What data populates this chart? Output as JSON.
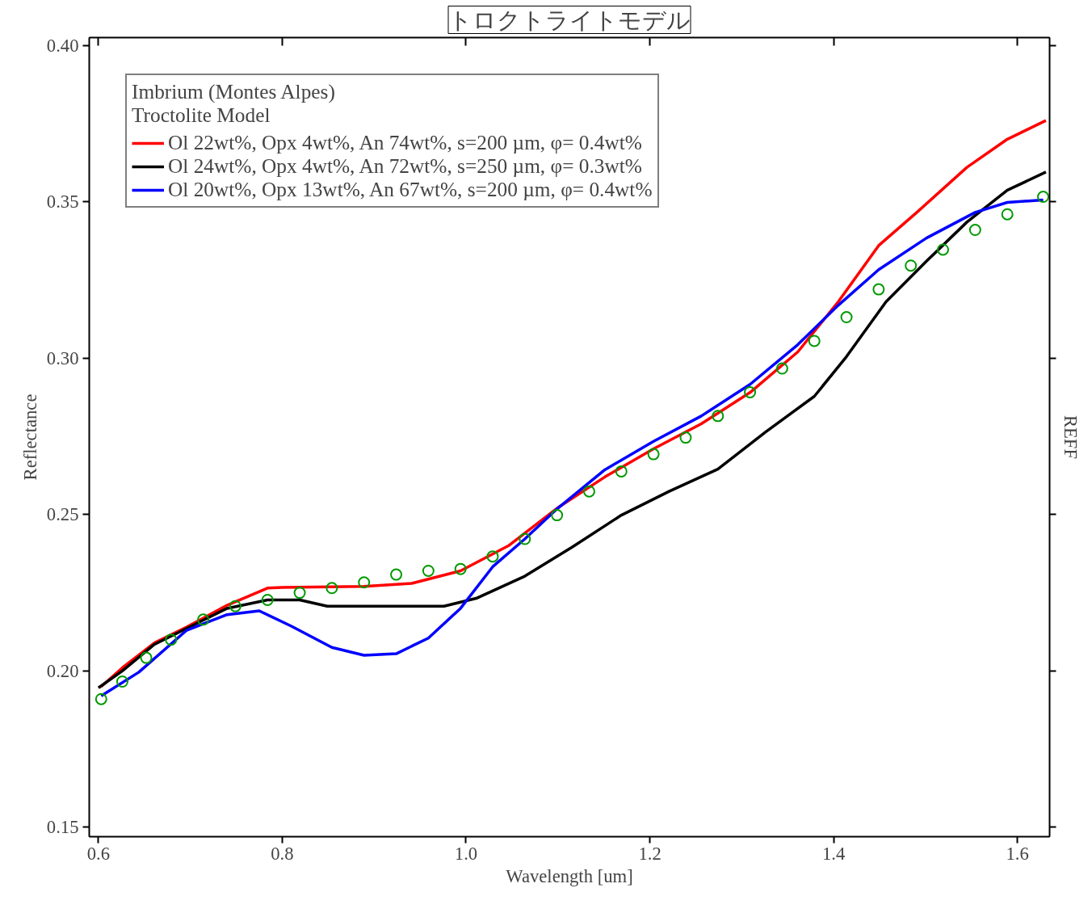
{
  "chart_data": {
    "type": "line",
    "title": "トロクトライトモデル",
    "xlabel": "Wavelength [um]",
    "ylabel": "Reflectance",
    "y2label": "REFF",
    "legend_title": "Imbrium (Montes Alpes)\nTroctolite Model",
    "legend": "top left",
    "grid": false,
    "xlim": [
      0.59,
      1.635
    ],
    "ylim": [
      0.147,
      0.4025
    ],
    "xticks": [
      {
        "value": 0.6,
        "label": "0.6"
      },
      {
        "value": 0.8,
        "label": "0.8"
      },
      {
        "value": 1.0,
        "label": "1.0"
      },
      {
        "value": 1.2,
        "label": "1.2"
      },
      {
        "value": 1.4,
        "label": "1.4"
      },
      {
        "value": 1.6,
        "label": "1.6"
      }
    ],
    "yticks": [
      {
        "value": 0.15,
        "label": "0.15"
      },
      {
        "value": 0.2,
        "label": "0.20"
      },
      {
        "value": 0.25,
        "label": "0.25"
      },
      {
        "value": 0.3,
        "label": "0.30"
      },
      {
        "value": 0.35,
        "label": "0.35"
      },
      {
        "value": 0.4,
        "label": "0.40"
      }
    ],
    "series": [
      {
        "name": "Ol 22wt%, Opx 4wt%, An 74wt%, s=200 µm, φ= 0.4wt%",
        "marker": "none",
        "color": "#ff0000",
        "x": [
          0.603,
          0.626,
          0.661,
          0.696,
          0.74,
          0.784,
          0.8,
          0.889,
          0.941,
          0.994,
          1.046,
          1.099,
          1.151,
          1.204,
          1.256,
          1.309,
          1.361,
          1.405,
          1.449,
          1.492,
          1.545,
          1.589,
          1.631
        ],
        "values": [
          0.195,
          0.201,
          0.209,
          0.214,
          0.221,
          0.2265,
          0.2267,
          0.227,
          0.228,
          0.232,
          0.24,
          0.252,
          0.262,
          0.271,
          0.279,
          0.289,
          0.302,
          0.318,
          0.336,
          0.347,
          0.361,
          0.37,
          0.376
        ]
      },
      {
        "name": "Ol 24wt%, Opx 4wt%, An 72wt%, s=250 µm, φ= 0.3wt%",
        "marker": "none",
        "color": "#000000",
        "x": [
          0.6,
          0.626,
          0.661,
          0.696,
          0.74,
          0.784,
          0.819,
          0.849,
          0.976,
          1.011,
          1.064,
          1.116,
          1.169,
          1.221,
          1.274,
          1.326,
          1.379,
          1.414,
          1.457,
          1.501,
          1.545,
          1.589,
          1.631
        ],
        "values": [
          0.1946,
          0.2,
          0.2085,
          0.2136,
          0.22,
          0.2227,
          0.2227,
          0.2207,
          0.2207,
          0.2232,
          0.2303,
          0.2397,
          0.2498,
          0.2574,
          0.2645,
          0.2764,
          0.2878,
          0.3005,
          0.318,
          0.331,
          0.3435,
          0.3537,
          0.3595
        ]
      },
      {
        "name": "Ol 20wt%, Opx 13wt%, An 67wt%, s=200 µm, φ= 0.4wt%",
        "marker": "none",
        "color": "#0000ff",
        "x": [
          0.603,
          0.644,
          0.696,
          0.74,
          0.775,
          0.81,
          0.854,
          0.889,
          0.924,
          0.959,
          0.994,
          1.029,
          1.064,
          1.099,
          1.151,
          1.204,
          1.256,
          1.309,
          1.361,
          1.405,
          1.449,
          1.501,
          1.554,
          1.589,
          1.628
        ],
        "values": [
          0.192,
          0.1996,
          0.213,
          0.218,
          0.2192,
          0.2143,
          0.2075,
          0.205,
          0.2055,
          0.2105,
          0.22,
          0.2333,
          0.2422,
          0.2518,
          0.2643,
          0.2734,
          0.2815,
          0.2916,
          0.3043,
          0.3169,
          0.3283,
          0.3384,
          0.3466,
          0.3498,
          0.3506
        ]
      },
      {
        "type": "scatter",
        "marker": "circle",
        "color": "#009900",
        "x": [
          0.603,
          0.626,
          0.652,
          0.679,
          0.714,
          0.749,
          0.784,
          0.819,
          0.854,
          0.889,
          0.924,
          0.959,
          0.994,
          1.029,
          1.064,
          1.099,
          1.134,
          1.169,
          1.204,
          1.239,
          1.274,
          1.309,
          1.344,
          1.379,
          1.414,
          1.449,
          1.484,
          1.519,
          1.554,
          1.589,
          1.628
        ],
        "values": [
          0.191,
          0.1966,
          0.2042,
          0.21,
          0.2164,
          0.2207,
          0.2227,
          0.225,
          0.2265,
          0.2283,
          0.2308,
          0.232,
          0.2326,
          0.2366,
          0.2422,
          0.2498,
          0.2574,
          0.2638,
          0.2693,
          0.2746,
          0.2815,
          0.2891,
          0.2967,
          0.3055,
          0.3131,
          0.322,
          0.3296,
          0.3347,
          0.341,
          0.346,
          0.3516
        ]
      }
    ]
  }
}
